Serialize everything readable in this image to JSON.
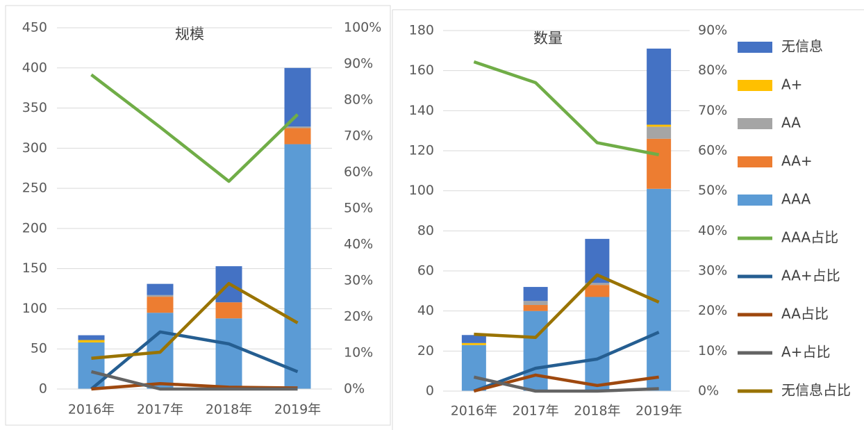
{
  "chart_data": [
    {
      "type": "bar",
      "title": "规模",
      "categories": [
        "2016年",
        "2017年",
        "2018年",
        "2019年"
      ],
      "ylim": [
        0,
        450
      ],
      "yticks": [
        0,
        50,
        100,
        150,
        200,
        250,
        300,
        350,
        400,
        450
      ],
      "y2lim": [
        0,
        100
      ],
      "y2ticks": [
        {
          "value": 0,
          "label": "0%"
        },
        {
          "value": 10,
          "label": "10%"
        },
        {
          "value": 20,
          "label": "20%"
        },
        {
          "value": 30,
          "label": "30%"
        },
        {
          "value": 40,
          "label": "40%"
        },
        {
          "value": 50,
          "label": "50%"
        },
        {
          "value": 60,
          "label": "60%"
        },
        {
          "value": 70,
          "label": "70%"
        },
        {
          "value": 80,
          "label": "80%"
        },
        {
          "value": 90,
          "label": "90%"
        },
        {
          "value": 100,
          "label": "100%"
        }
      ],
      "grid": true,
      "legend": "right",
      "series": [
        {
          "name": "无信息",
          "color": "#4472c4",
          "values": [
            6,
            14,
            45,
            73
          ]
        },
        {
          "name": "A+",
          "color": "#ffc000",
          "values": [
            3,
            0,
            0,
            0
          ]
        },
        {
          "name": "AA",
          "color": "#a5a5a5",
          "values": [
            0,
            2,
            0,
            2
          ]
        },
        {
          "name": "AA+",
          "color": "#ed7d31",
          "values": [
            0,
            20,
            20,
            20
          ]
        },
        {
          "name": "AAA",
          "color": "#5b9bd5",
          "values": [
            58,
            95,
            88,
            305
          ]
        },
        {
          "name": "AAA占比",
          "color": "#70ad47",
          "axis": "y2",
          "values": [
            87,
            72.5,
            57.5,
            76
          ]
        },
        {
          "name": "AA+占比",
          "color": "#255e91",
          "axis": "y2",
          "values": [
            0,
            15.8,
            12.5,
            4.8
          ]
        },
        {
          "name": "AA占比",
          "color": "#9e480e",
          "axis": "y2",
          "values": [
            0,
            1.5,
            0.5,
            0.3
          ]
        },
        {
          "name": "A+占比",
          "color": "#636363",
          "axis": "y2",
          "values": [
            4.8,
            0,
            0,
            0
          ]
        },
        {
          "name": "无信息占比",
          "color": "#997300",
          "axis": "y2",
          "values": [
            8.5,
            10.2,
            29.2,
            18.3
          ]
        }
      ]
    },
    {
      "type": "bar",
      "title": "数量",
      "categories": [
        "2016年",
        "2017年",
        "2018年",
        "2019年"
      ],
      "ylim": [
        0,
        180
      ],
      "yticks": [
        0,
        20,
        40,
        60,
        80,
        100,
        120,
        140,
        160,
        180
      ],
      "y2lim": [
        0,
        90
      ],
      "y2ticks": [
        {
          "value": 0,
          "label": "0%"
        },
        {
          "value": 10,
          "label": "10%"
        },
        {
          "value": 20,
          "label": "20%"
        },
        {
          "value": 30,
          "label": "30%"
        },
        {
          "value": 40,
          "label": "40%"
        },
        {
          "value": 50,
          "label": "50%"
        },
        {
          "value": 60,
          "label": "60%"
        },
        {
          "value": 70,
          "label": "70%"
        },
        {
          "value": 80,
          "label": "80%"
        },
        {
          "value": 90,
          "label": "90%"
        }
      ],
      "grid": true,
      "series": [
        {
          "name": "无信息",
          "color": "#4472c4",
          "values": [
            4,
            7,
            22,
            38
          ]
        },
        {
          "name": "A+",
          "color": "#ffc000",
          "values": [
            1,
            0,
            0,
            1
          ]
        },
        {
          "name": "AA",
          "color": "#a5a5a5",
          "values": [
            0,
            2,
            1,
            6
          ]
        },
        {
          "name": "AA+",
          "color": "#ed7d31",
          "values": [
            0,
            3,
            6,
            25
          ]
        },
        {
          "name": "AAA",
          "color": "#5b9bd5",
          "values": [
            23,
            40,
            47,
            101
          ]
        },
        {
          "name": "AAA占比",
          "color": "#70ad47",
          "axis": "y2",
          "values": [
            82.2,
            77,
            62,
            59
          ]
        },
        {
          "name": "AA+占比",
          "color": "#255e91",
          "axis": "y2",
          "values": [
            0,
            5.7,
            8,
            14.7
          ]
        },
        {
          "name": "AA占比",
          "color": "#9e480e",
          "axis": "y2",
          "values": [
            0,
            4,
            1.4,
            3.5
          ]
        },
        {
          "name": "A+占比",
          "color": "#636363",
          "axis": "y2",
          "values": [
            3.5,
            0,
            0,
            0.6
          ]
        },
        {
          "name": "无信息占比",
          "color": "#997300",
          "axis": "y2",
          "values": [
            14.2,
            13.4,
            29,
            22.2
          ]
        }
      ]
    }
  ]
}
